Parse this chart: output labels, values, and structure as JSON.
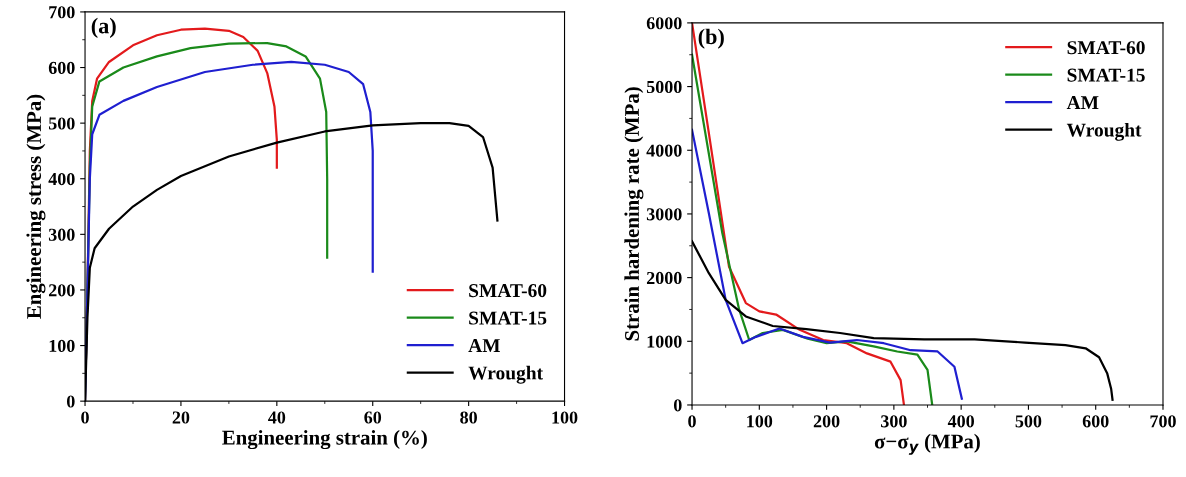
{
  "chart_data": [
    {
      "type": "line",
      "xlabel": "Engineering strain (%)",
      "ylabel": "Engineering stress (MPa)",
      "annotations": [
        "(a)"
      ],
      "xlim": [
        0,
        100
      ],
      "ylim": [
        0,
        700
      ],
      "xticks": [
        0,
        20,
        40,
        60,
        80,
        100
      ],
      "yticks": [
        0,
        100,
        200,
        300,
        400,
        500,
        600,
        700
      ],
      "grid": false,
      "legend": "bottom right",
      "series": [
        {
          "name": "SMAT-60",
          "color": "#e31a1c",
          "x": [
            0,
            0.5,
            1,
            1.5,
            2.5,
            5,
            10,
            15,
            20,
            25,
            30,
            33,
            36,
            38,
            39.5,
            40,
            40
          ],
          "values": [
            0,
            200,
            450,
            540,
            580,
            610,
            640,
            658,
            668,
            670,
            666,
            655,
            630,
            590,
            530,
            470,
            420
          ]
        },
        {
          "name": "SMAT-15",
          "color": "#1a8a1a",
          "x": [
            0,
            0.5,
            1,
            1.5,
            3,
            8,
            15,
            22,
            30,
            38,
            42,
            46,
            49,
            50.3,
            50.5,
            50.5
          ],
          "values": [
            0,
            200,
            420,
            530,
            575,
            600,
            620,
            635,
            643,
            644,
            638,
            620,
            580,
            520,
            400,
            258
          ]
        },
        {
          "name": "AM",
          "color": "#1f1fd0",
          "x": [
            0,
            0.5,
            1,
            1.5,
            3,
            8,
            15,
            25,
            35,
            43,
            50,
            55,
            58,
            59.5,
            60,
            60
          ],
          "values": [
            0,
            200,
            400,
            480,
            515,
            540,
            565,
            592,
            605,
            610,
            605,
            592,
            570,
            520,
            450,
            233
          ]
        },
        {
          "name": "Wrought",
          "color": "#000000",
          "x": [
            0,
            0.5,
            1,
            2,
            5,
            10,
            15,
            20,
            30,
            40,
            50,
            60,
            70,
            76,
            80,
            83,
            85,
            86
          ],
          "values": [
            0,
            150,
            240,
            275,
            310,
            350,
            380,
            405,
            440,
            465,
            485,
            496,
            500,
            500,
            495,
            475,
            420,
            325
          ]
        }
      ]
    },
    {
      "type": "line",
      "xlabel": "σ−σ$_{y}$ (MPa)",
      "ylabel": "Strain hardening rate (MPa)",
      "annotations": [
        "(b)"
      ],
      "xlim": [
        0,
        700
      ],
      "ylim": [
        0,
        6000
      ],
      "xticks": [
        0,
        100,
        200,
        300,
        400,
        500,
        600,
        700
      ],
      "yticks": [
        0,
        1000,
        2000,
        3000,
        4000,
        5000,
        6000
      ],
      "grid": false,
      "legend": "top right",
      "series": [
        {
          "name": "SMAT-60",
          "color": "#e31a1c",
          "x": [
            0,
            25,
            55,
            80,
            100,
            125,
            160,
            195,
            230,
            260,
            295,
            310,
            315
          ],
          "values": [
            6000,
            4270,
            2170,
            1600,
            1470,
            1420,
            1180,
            1020,
            970,
            810,
            680,
            390,
            0
          ]
        },
        {
          "name": "SMAT-15",
          "color": "#1a8a1a",
          "x": [
            0,
            45,
            70,
            85,
            105,
            135,
            172,
            200,
            230,
            270,
            305,
            335,
            350,
            357
          ],
          "values": [
            5500,
            2700,
            1500,
            1020,
            1130,
            1180,
            1040,
            970,
            1000,
            920,
            840,
            790,
            550,
            0
          ]
        },
        {
          "name": "AM",
          "color": "#1f1fd0",
          "x": [
            0,
            25,
            50,
            75,
            95,
            130,
            165,
            205,
            245,
            285,
            325,
            365,
            390,
            401
          ],
          "values": [
            4320,
            3010,
            1650,
            970,
            1070,
            1200,
            1070,
            980,
            1020,
            970,
            860,
            840,
            600,
            100
          ]
        },
        {
          "name": "Wrought",
          "color": "#000000",
          "x": [
            0,
            25,
            50,
            80,
            120,
            170,
            220,
            270,
            345,
            420,
            495,
            555,
            585,
            605,
            617,
            623,
            625
          ],
          "values": [
            2570,
            2070,
            1650,
            1390,
            1240,
            1190,
            1130,
            1050,
            1030,
            1030,
            980,
            940,
            890,
            750,
            500,
            250,
            80
          ]
        }
      ]
    }
  ]
}
